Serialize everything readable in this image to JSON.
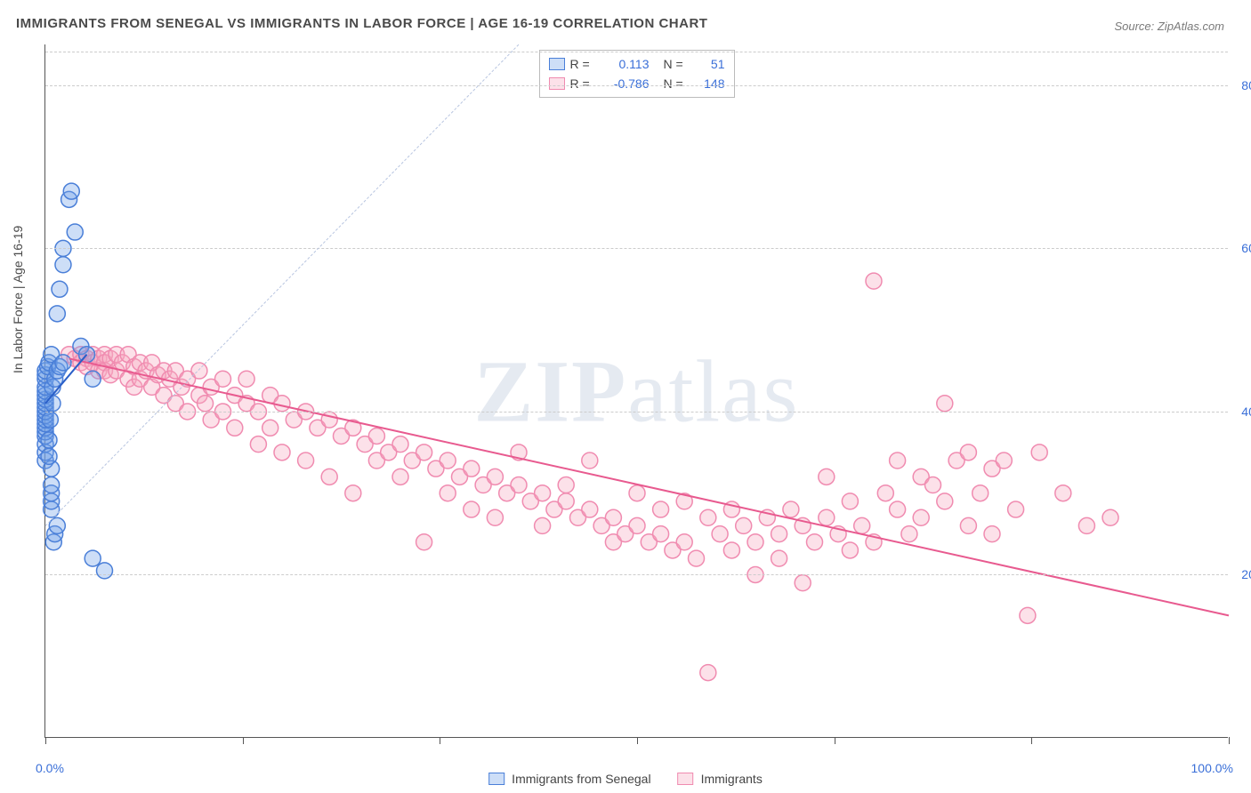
{
  "title": "IMMIGRANTS FROM SENEGAL VS IMMIGRANTS IN LABOR FORCE | AGE 16-19 CORRELATION CHART",
  "source": "Source: ZipAtlas.com",
  "ylabel": "In Labor Force | Age 16-19",
  "watermark": {
    "part1": "ZIP",
    "part2": "atlas"
  },
  "chart": {
    "type": "scatter",
    "xlim": [
      0,
      100
    ],
    "ylim": [
      0,
      85
    ],
    "y_ticks": [
      {
        "v": 20,
        "label": "20.0%"
      },
      {
        "v": 40,
        "label": "40.0%"
      },
      {
        "v": 60,
        "label": "60.0%"
      },
      {
        "v": 80,
        "label": "80.0%"
      }
    ],
    "x_tick_positions": [
      0,
      16.67,
      33.33,
      50,
      66.67,
      83.33,
      100
    ],
    "x_labels": {
      "min": "0.0%",
      "max": "100.0%"
    },
    "background_color": "#ffffff",
    "grid_color": "#cccccc",
    "axis_color": "#555555",
    "diag_color": "#b8c5e0",
    "marker_radius": 9,
    "marker_stroke_width": 1.5,
    "marker_fill_opacity": 0.35,
    "trend_line_width": 2
  },
  "series": {
    "blue": {
      "label": "Immigrants from Senegal",
      "color": "#6fa1e8",
      "stroke": "#4a7fd8",
      "fill": "rgba(111,161,232,0.35)",
      "trend_color": "#2a5fc8",
      "R": "0.113",
      "N": "51",
      "trend": {
        "x1": 0,
        "y1": 41,
        "x2": 3.5,
        "y2": 47
      },
      "points": [
        [
          0,
          34
        ],
        [
          0,
          35
        ],
        [
          0,
          36
        ],
        [
          0,
          37
        ],
        [
          0,
          37.5
        ],
        [
          0,
          38
        ],
        [
          0,
          38.5
        ],
        [
          0,
          39
        ],
        [
          0,
          39.5
        ],
        [
          0,
          40
        ],
        [
          0,
          40.5
        ],
        [
          0,
          41
        ],
        [
          0,
          41.5
        ],
        [
          0,
          42
        ],
        [
          0,
          42.5
        ],
        [
          0,
          43
        ],
        [
          0,
          44
        ],
        [
          0,
          44.5
        ],
        [
          0,
          45
        ],
        [
          0.2,
          45.5
        ],
        [
          0.3,
          46
        ],
        [
          0.5,
          47
        ],
        [
          0.5,
          28
        ],
        [
          0.5,
          29
        ],
        [
          0.5,
          30
        ],
        [
          0.5,
          31
        ],
        [
          0.5,
          33
        ],
        [
          0.7,
          24
        ],
        [
          0.8,
          25
        ],
        [
          1,
          26
        ],
        [
          1,
          52
        ],
        [
          1.2,
          55
        ],
        [
          1.5,
          58
        ],
        [
          1.5,
          60
        ],
        [
          2,
          66
        ],
        [
          2.2,
          67
        ],
        [
          2.5,
          62
        ],
        [
          3,
          48
        ],
        [
          3.5,
          47
        ],
        [
          4,
          44
        ],
        [
          4,
          22
        ],
        [
          5,
          20.5
        ],
        [
          0.3,
          34.5
        ],
        [
          0.3,
          36.5
        ],
        [
          0.4,
          39
        ],
        [
          0.6,
          41
        ],
        [
          0.6,
          43
        ],
        [
          0.8,
          44
        ],
        [
          1,
          45
        ],
        [
          1.2,
          45.5
        ],
        [
          1.5,
          46
        ]
      ]
    },
    "pink": {
      "label": "Immigrants",
      "color": "#f5a8c0",
      "stroke": "#f08bb0",
      "fill": "rgba(245,168,192,0.35)",
      "trend_color": "#e85a8f",
      "R": "-0.786",
      "N": "148",
      "trend": {
        "x1": 2,
        "y1": 46.5,
        "x2": 100,
        "y2": 15
      },
      "points": [
        [
          2,
          47
        ],
        [
          2.5,
          46.5
        ],
        [
          3,
          47
        ],
        [
          3,
          46
        ],
        [
          3.5,
          46.5
        ],
        [
          3.5,
          45.5
        ],
        [
          4,
          47
        ],
        [
          4,
          46
        ],
        [
          4.5,
          46.5
        ],
        [
          4.5,
          45
        ],
        [
          5,
          47
        ],
        [
          5,
          46
        ],
        [
          5,
          45
        ],
        [
          5.5,
          46.5
        ],
        [
          5.5,
          44.5
        ],
        [
          6,
          47
        ],
        [
          6,
          45
        ],
        [
          6.5,
          46
        ],
        [
          7,
          47
        ],
        [
          7,
          44
        ],
        [
          7.5,
          45.5
        ],
        [
          7.5,
          43
        ],
        [
          8,
          46
        ],
        [
          8,
          44
        ],
        [
          8.5,
          45
        ],
        [
          9,
          46
        ],
        [
          9,
          43
        ],
        [
          9.5,
          44.5
        ],
        [
          10,
          45
        ],
        [
          10,
          42
        ],
        [
          10.5,
          44
        ],
        [
          11,
          45
        ],
        [
          11,
          41
        ],
        [
          11.5,
          43
        ],
        [
          12,
          44
        ],
        [
          12,
          40
        ],
        [
          13,
          45
        ],
        [
          13,
          42
        ],
        [
          13.5,
          41
        ],
        [
          14,
          43
        ],
        [
          14,
          39
        ],
        [
          15,
          44
        ],
        [
          15,
          40
        ],
        [
          16,
          42
        ],
        [
          16,
          38
        ],
        [
          17,
          41
        ],
        [
          17,
          44
        ],
        [
          18,
          40
        ],
        [
          18,
          36
        ],
        [
          19,
          42
        ],
        [
          19,
          38
        ],
        [
          20,
          41
        ],
        [
          20,
          35
        ],
        [
          21,
          39
        ],
        [
          22,
          40
        ],
        [
          22,
          34
        ],
        [
          23,
          38
        ],
        [
          24,
          39
        ],
        [
          24,
          32
        ],
        [
          25,
          37
        ],
        [
          26,
          38
        ],
        [
          26,
          30
        ],
        [
          27,
          36
        ],
        [
          28,
          37
        ],
        [
          28,
          34
        ],
        [
          29,
          35
        ],
        [
          30,
          36
        ],
        [
          30,
          32
        ],
        [
          31,
          34
        ],
        [
          32,
          35
        ],
        [
          32,
          24
        ],
        [
          33,
          33
        ],
        [
          34,
          34
        ],
        [
          34,
          30
        ],
        [
          35,
          32
        ],
        [
          36,
          33
        ],
        [
          36,
          28
        ],
        [
          37,
          31
        ],
        [
          38,
          32
        ],
        [
          38,
          27
        ],
        [
          39,
          30
        ],
        [
          40,
          31
        ],
        [
          40,
          35
        ],
        [
          41,
          29
        ],
        [
          42,
          30
        ],
        [
          42,
          26
        ],
        [
          43,
          28
        ],
        [
          44,
          29
        ],
        [
          44,
          31
        ],
        [
          45,
          27
        ],
        [
          46,
          28
        ],
        [
          46,
          34
        ],
        [
          47,
          26
        ],
        [
          48,
          27
        ],
        [
          48,
          24
        ],
        [
          49,
          25
        ],
        [
          50,
          26
        ],
        [
          50,
          30
        ],
        [
          51,
          24
        ],
        [
          52,
          25
        ],
        [
          52,
          28
        ],
        [
          53,
          23
        ],
        [
          54,
          24
        ],
        [
          54,
          29
        ],
        [
          55,
          22
        ],
        [
          56,
          27
        ],
        [
          56,
          8
        ],
        [
          57,
          25
        ],
        [
          58,
          23
        ],
        [
          58,
          28
        ],
        [
          59,
          26
        ],
        [
          60,
          24
        ],
        [
          60,
          20
        ],
        [
          61,
          27
        ],
        [
          62,
          25
        ],
        [
          62,
          22
        ],
        [
          63,
          28
        ],
        [
          64,
          26
        ],
        [
          64,
          19
        ],
        [
          65,
          24
        ],
        [
          66,
          27
        ],
        [
          66,
          32
        ],
        [
          67,
          25
        ],
        [
          68,
          23
        ],
        [
          68,
          29
        ],
        [
          69,
          26
        ],
        [
          70,
          24
        ],
        [
          70,
          56
        ],
        [
          71,
          30
        ],
        [
          72,
          28
        ],
        [
          72,
          34
        ],
        [
          73,
          25
        ],
        [
          74,
          32
        ],
        [
          74,
          27
        ],
        [
          75,
          31
        ],
        [
          76,
          29
        ],
        [
          76,
          41
        ],
        [
          77,
          34
        ],
        [
          78,
          26
        ],
        [
          78,
          35
        ],
        [
          79,
          30
        ],
        [
          80,
          33
        ],
        [
          80,
          25
        ],
        [
          81,
          34
        ],
        [
          82,
          28
        ],
        [
          84,
          35
        ],
        [
          86,
          30
        ],
        [
          88,
          26
        ],
        [
          90,
          27
        ],
        [
          83,
          15
        ]
      ]
    }
  }
}
